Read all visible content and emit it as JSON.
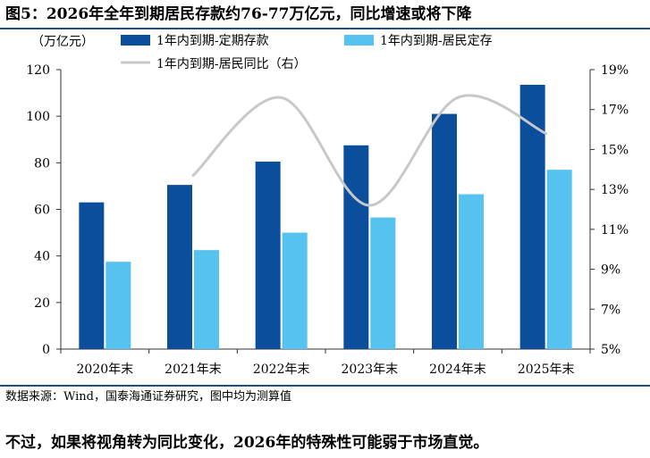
{
  "figure_title": "图5：2026年全年到期居民存款约76-77万亿元，同比增速或将下降",
  "source_note": "数据来源：Wind，国泰海通证券研究，图中均为测算值",
  "body_text": "不过，如果将视角转为同比变化，2026年的特殊性可能弱于市场直觉。",
  "colors": {
    "series_dark": "#0b4f9c",
    "series_light": "#56c2f0",
    "series_line": "#c8c8c8",
    "rule": "#1f4e8c"
  },
  "chart_data": {
    "type": "bar",
    "title": "",
    "categories": [
      "2020年末",
      "2021年末",
      "2022年末",
      "2023年末",
      "2024年末",
      "2025年末"
    ],
    "left_axis": {
      "unit_label": "（万亿元）",
      "ylim": [
        0,
        120
      ],
      "ticks": [
        "0",
        "20",
        "40",
        "60",
        "80",
        "100",
        "120"
      ]
    },
    "right_axis": {
      "ylim": [
        5,
        19
      ],
      "ticks": [
        "5%",
        "7%",
        "9%",
        "11%",
        "13%",
        "15%",
        "17%",
        "19%"
      ]
    },
    "series": [
      {
        "name": "1年内到期-定期存款",
        "type": "bar",
        "axis": "left",
        "values": [
          63,
          70.5,
          80.5,
          87.5,
          101,
          113.5
        ]
      },
      {
        "name": "1年内到期-居民定存",
        "type": "bar",
        "axis": "left",
        "values": [
          37.5,
          42.5,
          50,
          56.5,
          66.5,
          77
        ]
      },
      {
        "name": "1年内到期-居民同比（右）",
        "type": "line",
        "axis": "right",
        "smooth": true,
        "values": [
          null,
          13.7,
          17.6,
          12.2,
          17.6,
          15.8
        ]
      }
    ],
    "legend_position": "top",
    "grid": false
  }
}
